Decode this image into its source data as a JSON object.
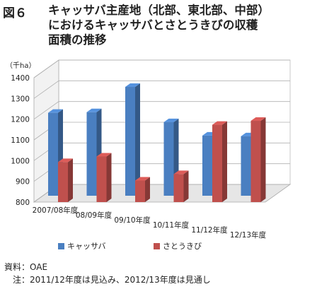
{
  "figure_label": "図６",
  "title_lines": [
    "キャッサバ主産地（北部、東北部、中部）",
    "におけるキャッサバとさとうきびの収穫",
    "面積の推移"
  ],
  "chart_data": {
    "type": "bar",
    "title": "キャッサバ主産地（北部、東北部、中部）におけるキャッサバとさとうきびの収穫面積の推移",
    "unit_label": "（千ha）",
    "categories": [
      "2007/08年度",
      "08/09年度",
      "09/10年度",
      "10/11年度",
      "11/12年度",
      "12/13年度"
    ],
    "series": [
      {
        "name": "キャッサバ",
        "values": [
          1200,
          1203,
          1325,
          1155,
          1090,
          1087
        ],
        "color": "#4a7fc1"
      },
      {
        "name": "さとうきび",
        "values": [
          993,
          1020,
          904,
          935,
          1173,
          1192
        ],
        "color": "#c0504d"
      }
    ],
    "ylim": [
      800,
      1400
    ],
    "yticks": [
      800,
      900,
      1000,
      1100,
      1200,
      1300,
      1400
    ],
    "grid": true,
    "legend_position": "bottom",
    "style": "3d-clustered"
  },
  "source_lines": [
    "資料：OAE",
    "　注：2011/12年度は見込み、2012/13年度は見通し"
  ]
}
